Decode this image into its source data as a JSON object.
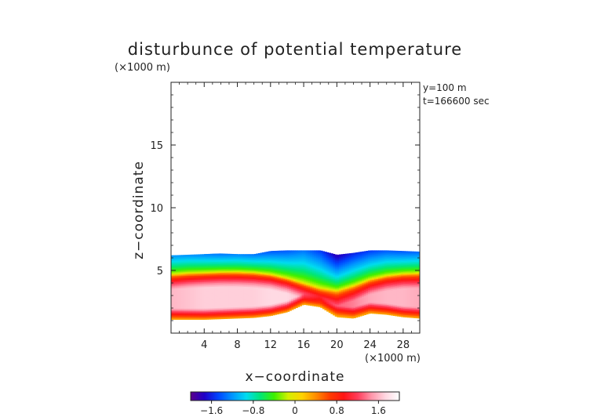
{
  "chart_data": {
    "type": "heatmap",
    "title": "disturbunce of potential temperature",
    "xlabel": "x−coordinate",
    "ylabel": "z−coordinate",
    "x_unit": "(×1000 m)",
    "y_unit": "(×1000 m)",
    "annotations": [
      "y=100 m",
      "t=166600 sec"
    ],
    "xlim": [
      0,
      30
    ],
    "ylim": [
      0,
      20
    ],
    "x_ticks": [
      4,
      8,
      12,
      16,
      20,
      24,
      28
    ],
    "y_ticks": [
      5,
      10,
      15
    ],
    "x_tick_labels": [
      "4",
      "8",
      "12",
      "16",
      "20",
      "24",
      "28"
    ],
    "y_tick_labels": [
      "5",
      "10",
      "15"
    ],
    "colorbar": {
      "range": [
        -2.0,
        2.0
      ],
      "ticks": [
        -1.6,
        -0.8,
        0,
        0.8,
        1.6
      ],
      "tick_labels": [
        "−1.6",
        "−0.8",
        "0",
        "0.8",
        "1.6"
      ],
      "colormap": [
        "#5a008c",
        "#1e00c8",
        "#0046ff",
        "#0096ff",
        "#00dcf0",
        "#00e678",
        "#3cf000",
        "#d2f000",
        "#ffd200",
        "#ff8c00",
        "#ff3c00",
        "#ff1414",
        "#ff3c5a",
        "#ff96aa",
        "#ffd7e1",
        "#ffffff"
      ]
    },
    "field": {
      "x": [
        0,
        2,
        4,
        6,
        8,
        10,
        12,
        14,
        16,
        18,
        20,
        22,
        24,
        26,
        28,
        30
      ],
      "top_z": [
        6.2,
        6.25,
        6.3,
        6.35,
        6.3,
        6.3,
        6.55,
        6.6,
        6.6,
        6.6,
        6.25,
        6.4,
        6.6,
        6.6,
        6.55,
        6.5
      ],
      "bottom_z": [
        1.1,
        1.1,
        1.1,
        1.15,
        1.2,
        1.25,
        1.4,
        1.7,
        2.3,
        2.1,
        1.3,
        1.2,
        1.6,
        1.5,
        1.3,
        1.2
      ],
      "zero_z": [
        4.7,
        4.8,
        4.85,
        4.9,
        4.9,
        4.85,
        4.7,
        4.4,
        4.0,
        3.6,
        3.4,
        3.8,
        4.3,
        4.6,
        4.75,
        4.8
      ],
      "min_value": [
        -1.2,
        -1.2,
        -1.25,
        -1.3,
        -1.25,
        -1.3,
        -1.4,
        -1.4,
        -1.3,
        -1.5,
        -1.8,
        -1.6,
        -1.5,
        -1.4,
        -1.4,
        -1.35
      ],
      "max_value": [
        1.6,
        1.65,
        1.7,
        1.7,
        1.7,
        1.7,
        1.75,
        1.75,
        1.6,
        1.5,
        1.3,
        1.4,
        1.55,
        1.6,
        1.6,
        1.55
      ]
    }
  }
}
